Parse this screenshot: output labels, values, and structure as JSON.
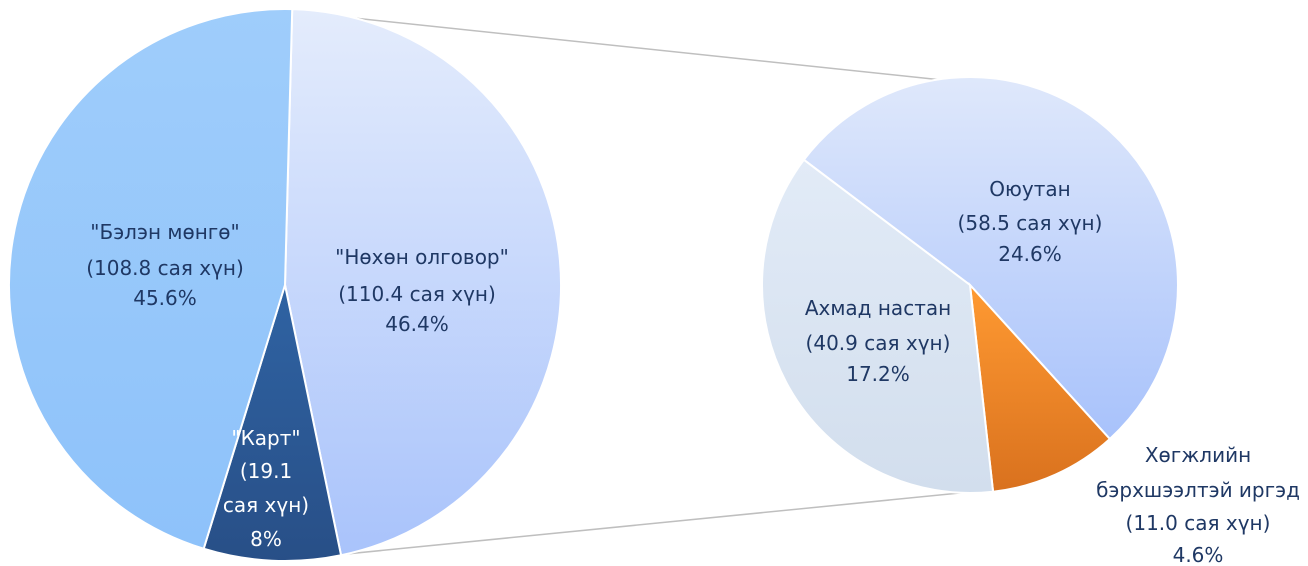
{
  "chart_data": {
    "type": "pie",
    "main_pie": {
      "slices": [
        {
          "label": "\"Нөхөн олговор\"",
          "detail": "(110.4 сая хүн)",
          "percent_label": "46.4%",
          "value": 110.4,
          "percent": 46.4,
          "color": "#b8cdfb"
        },
        {
          "label": "\"Карт\"",
          "detail": "(19.1 сая хүн)",
          "percent_label": "8%",
          "value": 19.1,
          "percent": 8.0,
          "color": "#2e5f9c"
        },
        {
          "label": "\"Бэлэн мөнгө\"",
          "detail": "(108.8 сая хүн)",
          "percent_label": "45.6%",
          "value": 108.8,
          "percent": 45.6,
          "color": "#99c9fb"
        }
      ]
    },
    "breakdown_pie": {
      "of_slice": "\"Нөхөн олговор\"",
      "slices": [
        {
          "label": "Оюутан",
          "detail": "(58.5 сая хүн)",
          "percent_label": "24.6%",
          "value": 58.5,
          "percent": 24.6,
          "color": "#c6d7f8"
        },
        {
          "label": "Хөгжлийн бэрхшээлтэй иргэд",
          "detail": "(11.0 сая хүн)",
          "percent_label": "4.6%",
          "value": 11.0,
          "percent": 4.6,
          "color": "#f08a2a"
        },
        {
          "label": "Ахмад настан",
          "detail": "(40.9 сая хүн)",
          "percent_label": "17.2%",
          "value": 40.9,
          "percent": 17.2,
          "color": "#d8e4f2"
        }
      ]
    }
  }
}
